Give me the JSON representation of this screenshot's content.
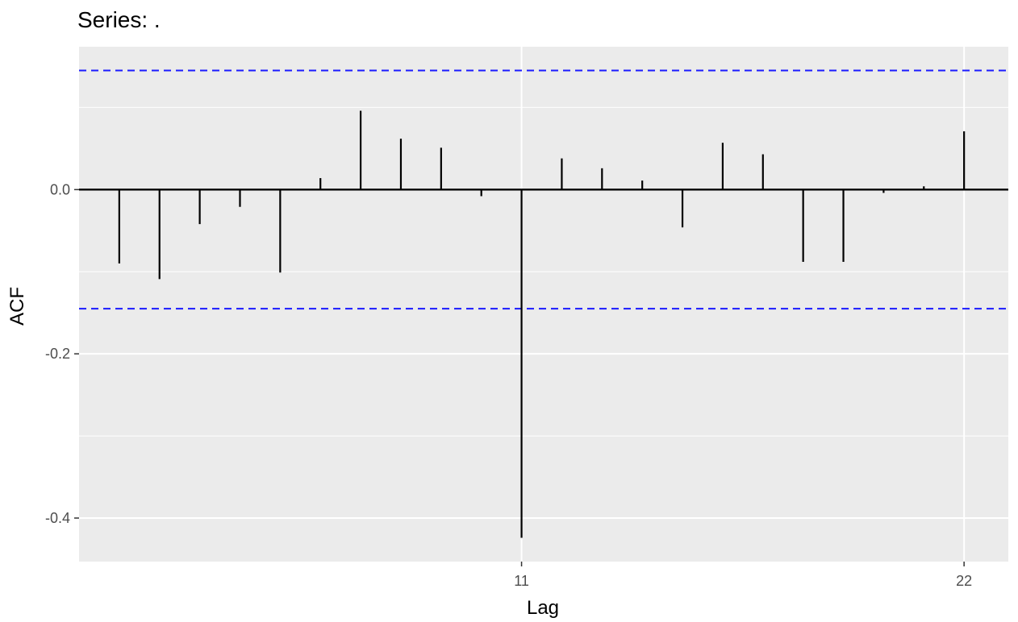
{
  "chart_data": {
    "type": "bar",
    "title": "Series: .",
    "xlabel": "Lag",
    "ylabel": "ACF",
    "x": [
      1,
      2,
      3,
      4,
      5,
      6,
      7,
      8,
      9,
      10,
      11,
      12,
      13,
      14,
      15,
      16,
      17,
      18,
      19,
      20,
      21,
      22
    ],
    "values": [
      -0.09,
      -0.109,
      -0.042,
      -0.021,
      -0.101,
      0.014,
      0.096,
      0.062,
      0.051,
      -0.008,
      -0.424,
      0.038,
      0.026,
      0.011,
      -0.046,
      0.057,
      0.043,
      -0.088,
      -0.088,
      -0.004,
      0.004,
      0.071
    ],
    "confidence_bound": 0.145,
    "xlim": [
      0,
      23.1
    ],
    "ylim": [
      -0.453,
      0.174
    ],
    "x_ticks": [
      11,
      22
    ],
    "x_tick_labels": [
      "11",
      "22"
    ],
    "y_ticks": [
      0.0,
      -0.2,
      -0.4
    ],
    "y_tick_labels": [
      "0.0",
      "-0.2",
      "-0.4"
    ],
    "grid": true,
    "colors": {
      "panel_background": "#ebebeb",
      "grid_line": "#ffffff",
      "spike": "#000000",
      "zero_line": "#000000",
      "confidence_line": "#1a1aff"
    }
  }
}
